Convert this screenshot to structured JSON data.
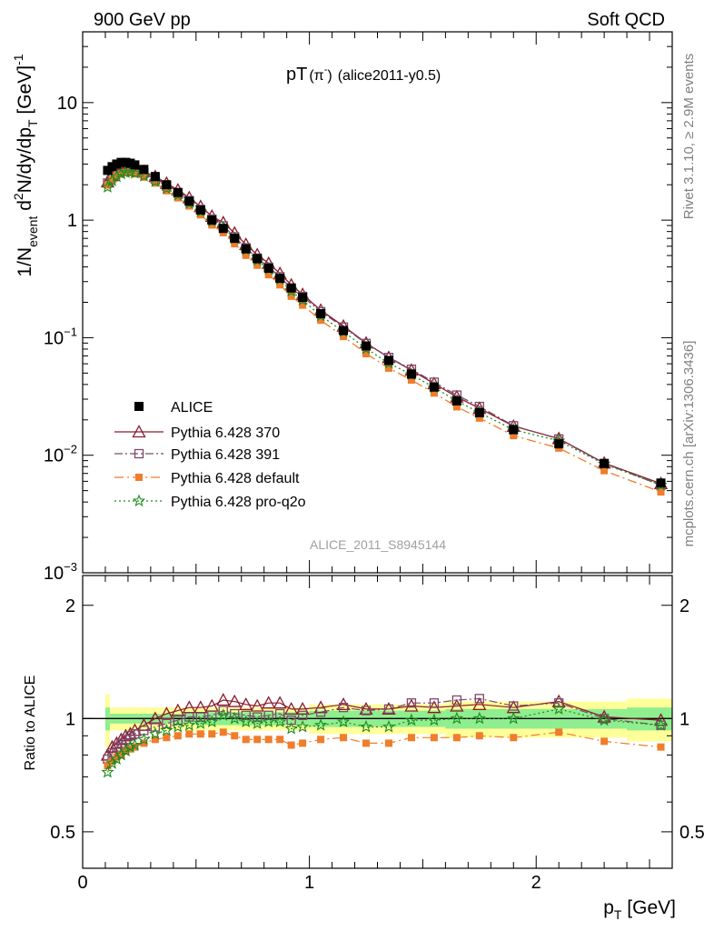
{
  "header": {
    "left": "900 GeV pp",
    "right": "Soft QCD"
  },
  "side_labels": {
    "rivet": "Rivet 3.1.10, ≥ 2.9M events",
    "mcplots": "mcplots.cern.ch [arXiv:1306.3436]"
  },
  "chart_data": [
    {
      "type": "scatter",
      "title": "pT(π⁻) (alice2011-y0.5)",
      "title_main": "pT",
      "title_paren": "(π",
      "title_sup": "-",
      "title_close": ")",
      "title_rest": "(alice2011-y0.5)",
      "watermark": "ALICE_2011_S8945144",
      "ylabel_parts": {
        "p1": "1/N",
        "s1": "event",
        "p2": " d",
        "s2": "2",
        "p3": "N/dy/dp",
        "s3": "T",
        "p4": " [GeV]",
        "s4": "-1"
      },
      "y_scale": "log",
      "ylim": [
        0.001,
        40
      ],
      "xlim": [
        0,
        2.6
      ],
      "y_ticks": [
        {
          "v": 10,
          "base": "10",
          "exp": ""
        },
        {
          "v": 1,
          "base": "1",
          "exp": ""
        },
        {
          "v": 0.1,
          "base": "10",
          "exp": "−1"
        },
        {
          "v": 0.01,
          "base": "10",
          "exp": "−2"
        },
        {
          "v": 0.001,
          "base": "10",
          "exp": "−3"
        }
      ],
      "x": [
        0.11,
        0.13,
        0.15,
        0.17,
        0.19,
        0.21,
        0.23,
        0.27,
        0.32,
        0.37,
        0.42,
        0.47,
        0.52,
        0.57,
        0.62,
        0.67,
        0.72,
        0.77,
        0.82,
        0.87,
        0.92,
        0.97,
        1.05,
        1.15,
        1.25,
        1.35,
        1.45,
        1.55,
        1.65,
        1.75,
        1.9,
        2.1,
        2.3,
        2.55
      ],
      "alice": [
        2.65,
        2.85,
        3.0,
        3.1,
        3.1,
        3.05,
        2.95,
        2.7,
        2.35,
        2.0,
        1.72,
        1.45,
        1.22,
        1.0,
        0.85,
        0.7,
        0.57,
        0.47,
        0.39,
        0.32,
        0.265,
        0.22,
        0.16,
        0.115,
        0.085,
        0.064,
        0.049,
        0.038,
        0.029,
        0.023,
        0.0165,
        0.0125,
        0.0085,
        0.0058
      ],
      "legend": [
        {
          "name": "ALICE"
        },
        {
          "name": "Pythia 6.428 370"
        },
        {
          "name": "Pythia 6.428 391"
        },
        {
          "name": "Pythia 6.428 default"
        },
        {
          "name": "Pythia 6.428 pro-q2o"
        }
      ],
      "series": [
        {
          "name": "Pythia 6.428 370",
          "color": "#8b1a2b",
          "dash": "",
          "marker": "triangle-open",
          "ratio": [
            0.8,
            0.84,
            0.86,
            0.88,
            0.9,
            0.91,
            0.93,
            0.96,
            1.0,
            1.03,
            1.05,
            1.07,
            1.07,
            1.08,
            1.12,
            1.11,
            1.09,
            1.08,
            1.1,
            1.1,
            1.06,
            1.06,
            1.07,
            1.09,
            1.06,
            1.06,
            1.08,
            1.07,
            1.08,
            1.09,
            1.07,
            1.11,
            1.01,
            0.99
          ]
        },
        {
          "name": "Pythia 6.428 391",
          "color": "#7b4a6b",
          "dash": "9,3,2,3",
          "marker": "square-open",
          "ratio": [
            0.78,
            0.81,
            0.84,
            0.86,
            0.88,
            0.9,
            0.91,
            0.93,
            0.95,
            0.97,
            0.99,
            1.01,
            1.01,
            1.02,
            1.05,
            1.03,
            1.02,
            1.01,
            1.02,
            1.03,
            0.99,
            1.02,
            1.04,
            1.07,
            1.05,
            1.06,
            1.1,
            1.1,
            1.12,
            1.13,
            1.08,
            1.1,
            1.0,
            0.96
          ]
        },
        {
          "name": "Pythia 6.428 default",
          "color": "#f07d2b",
          "dash": "10,4,2,4",
          "marker": "square-filled",
          "ratio": [
            0.75,
            0.77,
            0.79,
            0.8,
            0.82,
            0.83,
            0.84,
            0.86,
            0.88,
            0.89,
            0.9,
            0.91,
            0.91,
            0.91,
            0.92,
            0.9,
            0.88,
            0.88,
            0.88,
            0.88,
            0.85,
            0.86,
            0.88,
            0.89,
            0.86,
            0.86,
            0.89,
            0.89,
            0.89,
            0.9,
            0.89,
            0.92,
            0.87,
            0.84
          ]
        },
        {
          "name": "Pythia 6.428 pro-q2o",
          "color": "#1e8a1e",
          "dash": "2,3",
          "marker": "star",
          "ratio": [
            0.72,
            0.76,
            0.78,
            0.8,
            0.82,
            0.84,
            0.85,
            0.88,
            0.91,
            0.93,
            0.95,
            0.96,
            0.97,
            0.98,
            1.02,
            1.0,
            0.98,
            0.97,
            0.98,
            0.98,
            0.94,
            0.95,
            0.96,
            0.98,
            0.95,
            0.95,
            0.99,
            0.99,
            1.0,
            1.0,
            1.0,
            1.06,
            0.99,
            0.96
          ]
        }
      ]
    },
    {
      "type": "scatter",
      "ylabel": "Ratio to ALICE",
      "xlabel_main": "p",
      "xlabel_sub": "T",
      "xlabel_unit": " [GeV]",
      "y_scale": "log",
      "ylim": [
        0.4,
        2.4
      ],
      "y_ticks": [
        {
          "v": 2,
          "label": "2"
        },
        {
          "v": 1,
          "label": "1"
        },
        {
          "v": 0.5,
          "label": "0.5"
        }
      ],
      "x_ticks": [
        {
          "v": 0,
          "label": "0"
        },
        {
          "v": 1,
          "label": "1"
        },
        {
          "v": 2,
          "label": "2"
        }
      ],
      "uncertainty_bands": [
        {
          "x_from": 0.1,
          "x_to": 0.12,
          "stat": 0.07,
          "total": 0.16
        },
        {
          "x_from": 0.12,
          "x_to": 0.5,
          "stat": 0.03,
          "total": 0.07
        },
        {
          "x_from": 0.5,
          "x_to": 1.0,
          "stat": 0.04,
          "total": 0.07
        },
        {
          "x_from": 1.0,
          "x_to": 1.6,
          "stat": 0.05,
          "total": 0.09
        },
        {
          "x_from": 1.6,
          "x_to": 2.4,
          "stat": 0.06,
          "total": 0.11
        },
        {
          "x_from": 2.4,
          "x_to": 2.6,
          "stat": 0.07,
          "total": 0.13
        }
      ]
    }
  ],
  "colors": {
    "stat_band": "#8fee8f",
    "total_band": "#ffff99",
    "data": "#000000"
  }
}
